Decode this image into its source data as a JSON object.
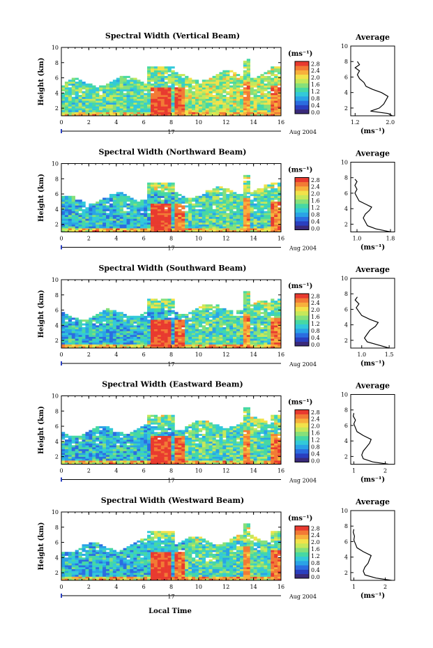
{
  "figure": {
    "xlabel": "Local Time",
    "date_label": "Aug 2004",
    "day_label": "17"
  },
  "colorbar": {
    "unit": "(ms⁻¹)",
    "tick_labels": [
      "0.0",
      "0.4",
      "0.8",
      "1.2",
      "1.6",
      "2.0",
      "2.4",
      "2.8"
    ],
    "colors": [
      "#3a2a7a",
      "#2a3fbf",
      "#2b6de0",
      "#2aa3e6",
      "#33c9d9",
      "#46d8a4",
      "#86e07a",
      "#c6e85a",
      "#f2e24a",
      "#f7b03c",
      "#f27a35",
      "#e83a2f"
    ]
  },
  "chart_data": [
    {
      "type": "heatmap",
      "title": "Spectral Width (Vertical Beam)",
      "ylabel": "Height (km)",
      "xlim": [
        0,
        16
      ],
      "ylim": [
        1,
        10
      ],
      "x_ticks": [
        "0",
        "2",
        "4",
        "6",
        "8",
        "10",
        "12",
        "14",
        "16"
      ],
      "y_ticks": [
        "2",
        "4",
        "6",
        "8",
        "10"
      ],
      "average": {
        "title": "Average",
        "xlabel": "(ms⁻¹)",
        "xlim": [
          1.1,
          2.1
        ],
        "x_ticks": [
          "1.2",
          "2.0"
        ],
        "x_tick_values": [
          1.2,
          2.0
        ],
        "y_ticks": [
          "2",
          "4",
          "6",
          "8",
          "10"
        ],
        "profile": [
          [
            2.05,
            1.0
          ],
          [
            1.95,
            1.3
          ],
          [
            1.55,
            1.6
          ],
          [
            1.75,
            2.0
          ],
          [
            1.85,
            2.5
          ],
          [
            1.9,
            3.0
          ],
          [
            1.95,
            3.5
          ],
          [
            1.8,
            4.0
          ],
          [
            1.6,
            4.4
          ],
          [
            1.45,
            4.8
          ],
          [
            1.4,
            5.3
          ],
          [
            1.3,
            5.8
          ],
          [
            1.25,
            6.3
          ],
          [
            1.3,
            6.8
          ],
          [
            1.2,
            7.2
          ],
          [
            1.3,
            7.6
          ],
          [
            1.25,
            8.0
          ]
        ]
      }
    },
    {
      "type": "heatmap",
      "title": "Spectral Width (Northward Beam)",
      "ylabel": "Height (km)",
      "xlim": [
        0,
        16
      ],
      "ylim": [
        1,
        10
      ],
      "x_ticks": [
        "0",
        "2",
        "4",
        "6",
        "8",
        "10",
        "12",
        "14",
        "16"
      ],
      "y_ticks": [
        "2",
        "4",
        "6",
        "8",
        "10"
      ],
      "average": {
        "title": "Average",
        "xlabel": "(ms⁻¹)",
        "xlim": [
          0.85,
          1.9
        ],
        "x_ticks": [
          "1.0",
          "1.8"
        ],
        "x_tick_values": [
          1.0,
          1.8
        ],
        "y_ticks": [
          "2",
          "4",
          "6",
          "8",
          "10"
        ],
        "profile": [
          [
            1.8,
            1.0
          ],
          [
            1.45,
            1.4
          ],
          [
            1.25,
            1.8
          ],
          [
            1.2,
            2.3
          ],
          [
            1.15,
            2.8
          ],
          [
            1.2,
            3.3
          ],
          [
            1.3,
            3.8
          ],
          [
            1.35,
            4.2
          ],
          [
            1.2,
            4.6
          ],
          [
            1.05,
            5.0
          ],
          [
            1.0,
            5.5
          ],
          [
            0.95,
            6.0
          ],
          [
            1.0,
            6.5
          ],
          [
            0.95,
            7.0
          ],
          [
            1.0,
            7.5
          ],
          [
            0.95,
            7.8
          ]
        ]
      }
    },
    {
      "type": "heatmap",
      "title": "Spectral Width (Southward Beam)",
      "ylabel": "Height (km)",
      "xlim": [
        0,
        16
      ],
      "ylim": [
        1,
        10
      ],
      "x_ticks": [
        "0",
        "2",
        "4",
        "6",
        "8",
        "10",
        "12",
        "14",
        "16"
      ],
      "y_ticks": [
        "2",
        "4",
        "6",
        "8",
        "10"
      ],
      "average": {
        "title": "Average",
        "xlabel": "(ms⁻¹)",
        "xlim": [
          0.8,
          1.6
        ],
        "x_ticks": [
          "1.0",
          "1.5"
        ],
        "x_tick_values": [
          1.0,
          1.5
        ],
        "y_ticks": [
          "2",
          "4",
          "6",
          "8",
          "10"
        ],
        "profile": [
          [
            1.5,
            1.0
          ],
          [
            1.3,
            1.4
          ],
          [
            1.1,
            1.8
          ],
          [
            1.05,
            2.3
          ],
          [
            1.1,
            2.8
          ],
          [
            1.15,
            3.3
          ],
          [
            1.25,
            3.8
          ],
          [
            1.3,
            4.3
          ],
          [
            1.15,
            4.7
          ],
          [
            1.0,
            5.2
          ],
          [
            0.95,
            5.7
          ],
          [
            0.9,
            6.2
          ],
          [
            0.95,
            6.7
          ],
          [
            0.88,
            7.2
          ],
          [
            0.92,
            7.6
          ]
        ]
      }
    },
    {
      "type": "heatmap",
      "title": "Spectral Width (Eastward Beam)",
      "ylabel": "Height (km)",
      "xlim": [
        0,
        16
      ],
      "ylim": [
        1,
        10
      ],
      "x_ticks": [
        "0",
        "2",
        "4",
        "6",
        "8",
        "10",
        "12",
        "14",
        "16"
      ],
      "y_ticks": [
        "2",
        "4",
        "6",
        "8",
        "10"
      ],
      "average": {
        "title": "Average",
        "xlabel": "(ms⁻¹)",
        "xlim": [
          0.9,
          2.3
        ],
        "x_ticks": [
          "1",
          "2"
        ],
        "x_tick_values": [
          1.0,
          2.0
        ],
        "y_ticks": [
          "2",
          "4",
          "6",
          "8",
          "10"
        ],
        "profile": [
          [
            2.1,
            1.0
          ],
          [
            1.6,
            1.3
          ],
          [
            1.3,
            1.7
          ],
          [
            1.25,
            2.2
          ],
          [
            1.3,
            2.7
          ],
          [
            1.4,
            3.2
          ],
          [
            1.5,
            3.7
          ],
          [
            1.55,
            4.2
          ],
          [
            1.3,
            4.7
          ],
          [
            1.1,
            5.2
          ],
          [
            1.05,
            5.7
          ],
          [
            1.0,
            6.2
          ],
          [
            1.05,
            6.7
          ],
          [
            0.98,
            7.2
          ],
          [
            1.0,
            7.6
          ]
        ]
      }
    },
    {
      "type": "heatmap",
      "title": "Spectral Width (Westward Beam)",
      "ylabel": "Height (km)",
      "xlim": [
        0,
        16
      ],
      "ylim": [
        1,
        10
      ],
      "x_ticks": [
        "0",
        "2",
        "4",
        "6",
        "8",
        "10",
        "12",
        "14",
        "16"
      ],
      "y_ticks": [
        "2",
        "4",
        "6",
        "8",
        "10"
      ],
      "average": {
        "title": "Average",
        "xlabel": "(ms⁻¹)",
        "xlim": [
          0.9,
          2.3
        ],
        "x_ticks": [
          "1",
          "2"
        ],
        "x_tick_values": [
          1.0,
          2.0
        ],
        "y_ticks": [
          "2",
          "4",
          "6",
          "8",
          "10"
        ],
        "profile": [
          [
            2.2,
            1.0
          ],
          [
            1.7,
            1.3
          ],
          [
            1.35,
            1.7
          ],
          [
            1.3,
            2.2
          ],
          [
            1.35,
            2.7
          ],
          [
            1.45,
            3.2
          ],
          [
            1.5,
            3.7
          ],
          [
            1.55,
            4.2
          ],
          [
            1.3,
            4.7
          ],
          [
            1.1,
            5.2
          ],
          [
            1.05,
            5.7
          ],
          [
            1.0,
            6.2
          ],
          [
            1.02,
            6.7
          ],
          [
            0.98,
            7.2
          ],
          [
            1.0,
            7.6
          ]
        ]
      }
    }
  ]
}
